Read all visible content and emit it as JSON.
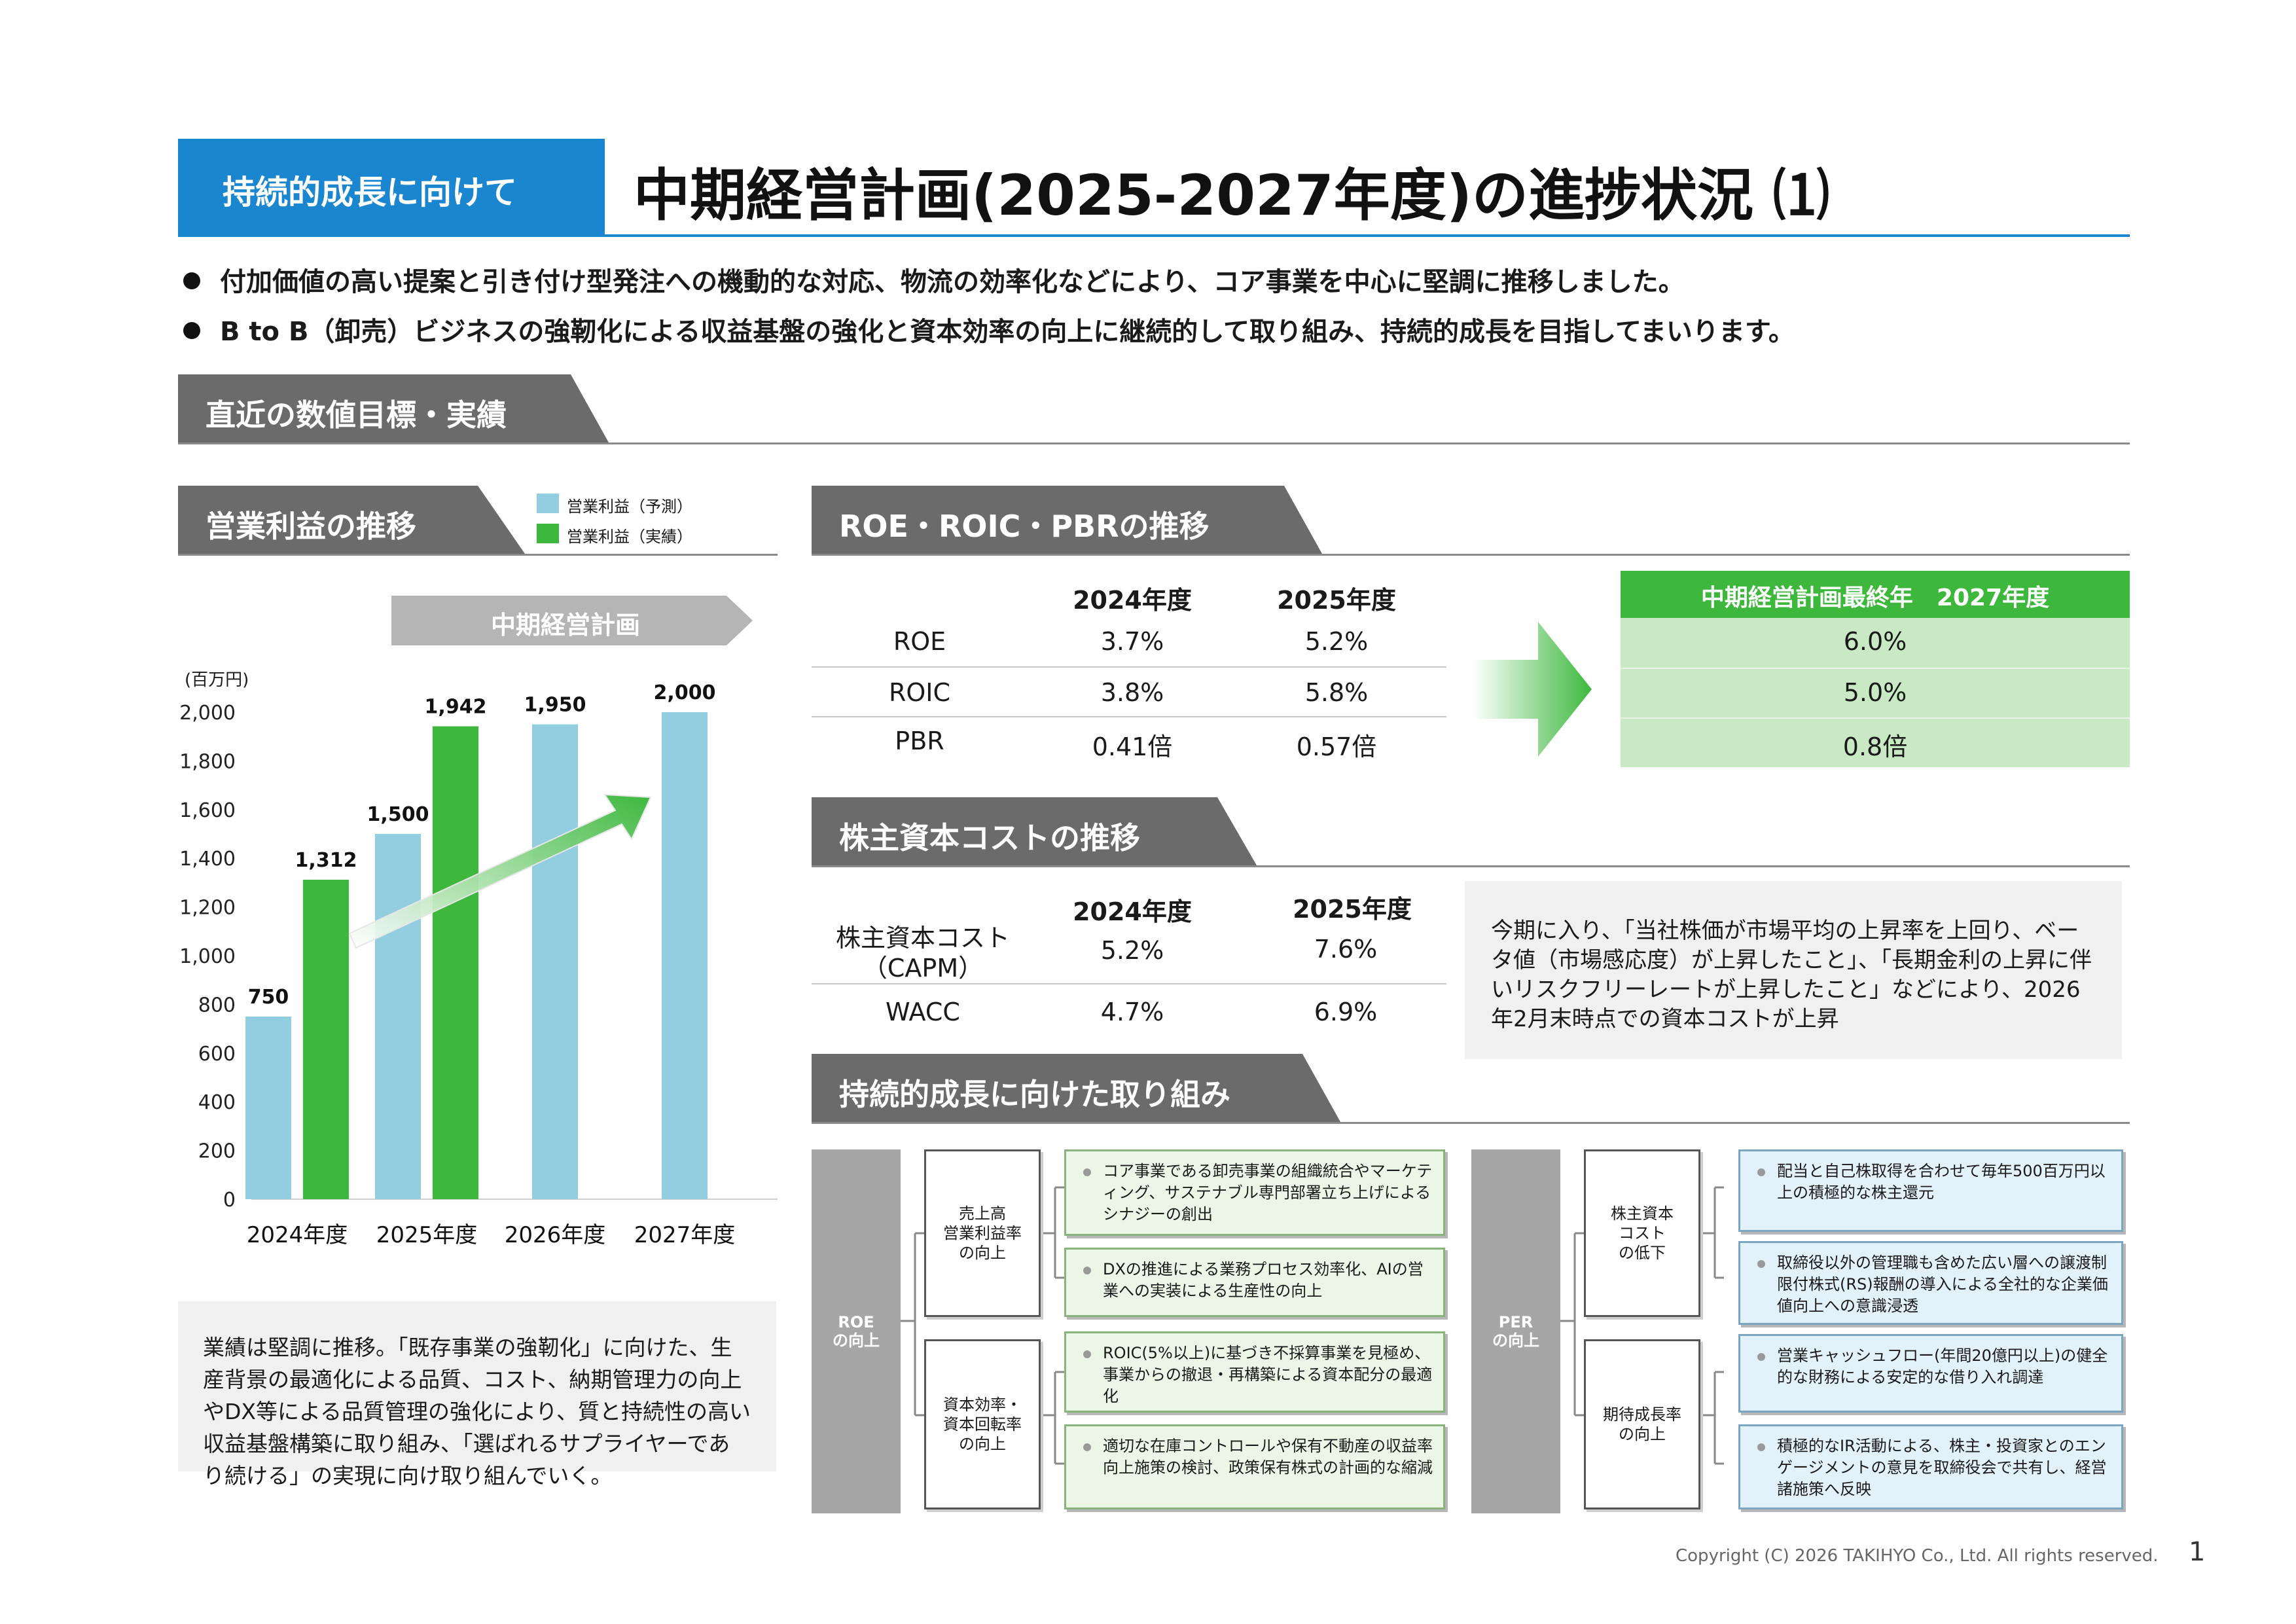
{
  "header": {
    "tag": "持続的成長に向けて",
    "title": "中期経営計画(2025-2027年度)の進捗状況 ⑴"
  },
  "bullets": [
    "付加価値の高い提案と引き付け型発注への機動的な対応、物流の効率化などにより、コア事業を中心に堅調に推移しました。",
    "B to B（卸売）ビジネスの強靭化による収益基盤の強化と資本効率の向上に継続的して取り組み、持続的成長を目指してまいります。"
  ],
  "section_main": "直近の数値目標・実績",
  "profit": {
    "heading": "営業利益の推移",
    "legend_forecast": "営業利益（予測）",
    "legend_actual": "営業利益（実績）",
    "plan_banner": "中期経営計画",
    "note": "業績は堅調に推移。「既存事業の強靭化」に向けた、生産背景の最適化による品質、コスト、納期管理力の向上やDX等による品質管理の強化により、質と持続性の高い収益基盤構築に取り組み、「選ばれるサプライヤーであり続ける」の実現に向け取り組んでいく。"
  },
  "chart_data": {
    "type": "bar",
    "unit_label": "(百万円)",
    "categories": [
      "2024年度",
      "2025年度",
      "2026年度",
      "2027年度"
    ],
    "series": [
      {
        "name": "営業利益（予測）",
        "values": [
          750,
          1500,
          1950,
          2000
        ],
        "labels": [
          "750",
          "1,500",
          "1,950",
          "2,000"
        ],
        "color": "#92cde0"
      },
      {
        "name": "営業利益（実績）",
        "values": [
          1312,
          1942,
          null,
          null
        ],
        "labels": [
          "1,312",
          "1,942",
          "",
          ""
        ],
        "color": "#3db83d"
      }
    ],
    "yticks": [
      "0",
      "200",
      "400",
      "600",
      "800",
      "1,000",
      "1,200",
      "1,400",
      "1,600",
      "1,800",
      "2,000"
    ],
    "ylim": [
      0,
      2000
    ],
    "grid": false,
    "legend": "top"
  },
  "roe": {
    "heading": "ROE・ROIC・PBRの推移",
    "col1": "2024年度",
    "col2": "2025年度",
    "target_header": "中期経営計画最終年　2027年度",
    "rows": [
      {
        "label": "ROE",
        "v2024": "3.7%",
        "v2025": "5.2%",
        "target": "6.0%"
      },
      {
        "label": "ROIC",
        "v2024": "3.8%",
        "v2025": "5.8%",
        "target": "5.0%"
      },
      {
        "label": "PBR",
        "v2024": "0.41倍",
        "v2025": "0.57倍",
        "target": "0.8倍"
      }
    ]
  },
  "cost": {
    "heading": "株主資本コストの推移",
    "col1": "2024年度",
    "col2": "2025年度",
    "rows": [
      {
        "label": "株主資本コスト\n（CAPM）",
        "v2024": "5.2%",
        "v2025": "7.6%"
      },
      {
        "label": "WACC",
        "v2024": "4.7%",
        "v2025": "6.9%"
      }
    ],
    "note": "今期に入り、「当社株価が市場平均の上昇率を上回り、ベータ値（市場感応度）が上昇したこと」、「長期金利の上昇に伴いリスクフリーレートが上昇したこと」などにより、2026年2月末時点での資本コストが上昇"
  },
  "growth": {
    "heading": "持続的成長に向けた取り組み",
    "roe_root": "ROE\nの向上",
    "roe_groups": [
      {
        "label": "売上高\n営業利益率\nの向上",
        "items": [
          "コア事業である卸売事業の組織統合やマーケティング、サステナブル専門部署立ち上げによるシナジーの創出",
          "DXの推進による業務プロセス効率化、AIの営業への実装による生産性の向上"
        ]
      },
      {
        "label": "資本効率・\n資本回転率\nの向上",
        "items": [
          "ROIC(5%以上)に基づき不採算事業を見極め、事業からの撤退・再構築による資本配分の最適化",
          "適切な在庫コントロールや保有不動産の収益率向上施策の検討、政策保有株式の計画的な縮減"
        ]
      }
    ],
    "per_root": "PER\nの向上",
    "per_groups": [
      {
        "label": "株主資本\nコスト\nの低下",
        "items": [
          "配当と自己株取得を合わせて毎年500百万円以上の積極的な株主還元",
          "取締役以外の管理職も含めた広い層への譲渡制限付株式(RS)報酬の導入による全社的な企業価値向上への意識浸透"
        ]
      },
      {
        "label": "期待成長率\nの向上",
        "items": [
          "営業キャッシュフロー(年間20億円以上)の健全的な財務による安定的な借り入れ調達",
          "積極的なIR活動による、株主・投資家とのエンゲージメントの意見を取締役会で共有し、経営諸施策へ反映"
        ]
      }
    ]
  },
  "footer": {
    "copyright": "Copyright (C) 2026 TAKIHYO Co., Ltd. All rights reserved.",
    "page": "1"
  }
}
